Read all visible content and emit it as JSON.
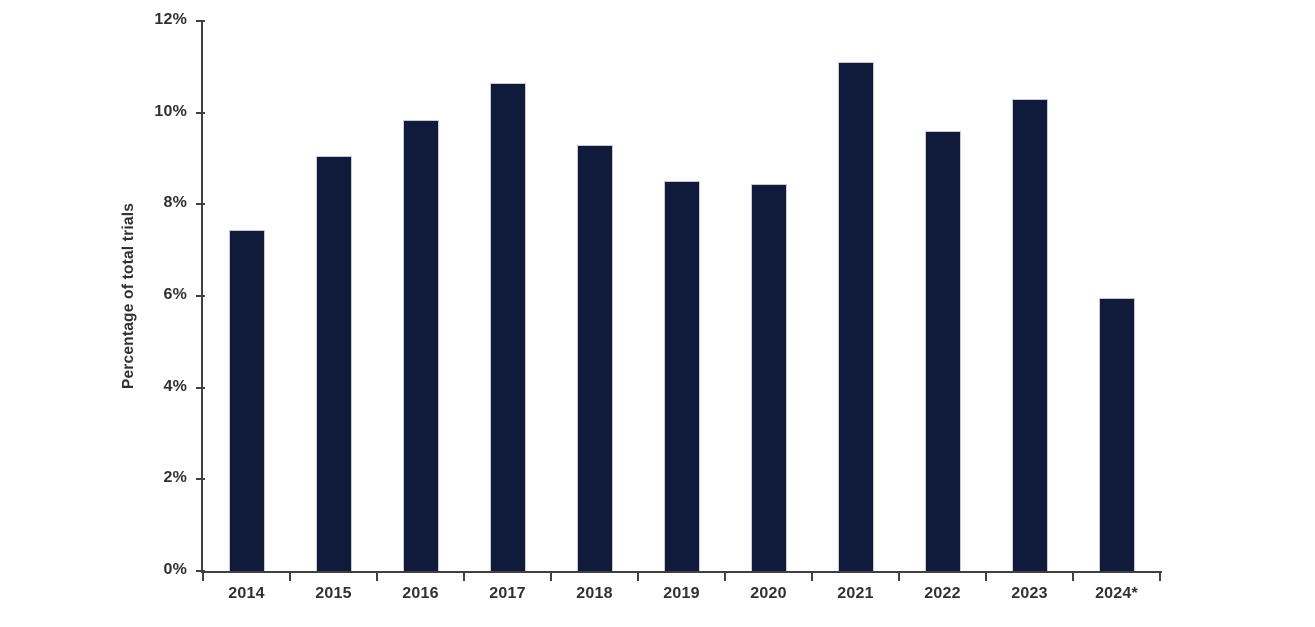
{
  "chart_data": {
    "type": "bar",
    "title": "",
    "xlabel": "",
    "ylabel": "Percentage of total trials",
    "categories": [
      "2014",
      "2015",
      "2016",
      "2017",
      "2018",
      "2019",
      "2020",
      "2021",
      "2022",
      "2023",
      "2024*"
    ],
    "values": [
      7.45,
      9.05,
      9.85,
      10.65,
      9.3,
      8.5,
      8.45,
      11.1,
      9.6,
      10.3,
      5.95
    ],
    "ylim": [
      0,
      12
    ],
    "ytick_values": [
      0,
      2,
      4,
      6,
      8,
      10,
      12
    ],
    "ytick_labels": [
      "0%",
      "2%",
      "4%",
      "6%",
      "8%",
      "10%",
      "12%"
    ],
    "grid": false,
    "legend": null,
    "colors": {
      "bar_fill": "#101A3A",
      "bar_border": "#C7C9D6",
      "axis_line": "#404040",
      "text": "#303030",
      "background": "#FFFFFF"
    }
  }
}
